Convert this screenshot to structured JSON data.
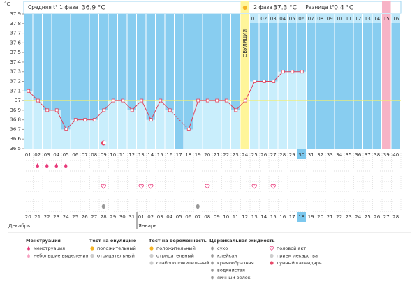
{
  "chart_data": {
    "type": "line",
    "y_unit": "°C",
    "header": {
      "phase1_label": "Средняя t° 1 фаза",
      "phase1_avg": "36.9 °C",
      "phase2_label": "2 фаза",
      "phase2_avg": "37.3 °C",
      "diff_label": "Разница t°",
      "diff": "0.4 °C"
    },
    "ovulation_label": "ОВУЛЯЦИЯ",
    "categories": [
      "01",
      "02",
      "03",
      "04",
      "05",
      "06",
      "07",
      "08",
      "09",
      "10",
      "11",
      "12",
      "13",
      "14",
      "15",
      "16",
      "17",
      "18",
      "19",
      "20",
      "21",
      "22",
      "23",
      "24",
      "25",
      "26",
      "27",
      "28",
      "29",
      "30",
      "31",
      "32",
      "33",
      "34",
      "35",
      "36",
      "37",
      "38",
      "39",
      "40"
    ],
    "values": [
      37.1,
      37.0,
      36.9,
      36.9,
      36.7,
      36.8,
      36.8,
      36.8,
      36.9,
      37.0,
      37.0,
      36.9,
      37.0,
      36.8,
      37.0,
      36.9,
      null,
      36.7,
      37.0,
      37.0,
      37.0,
      37.0,
      36.9,
      37.0,
      37.2,
      37.2,
      37.2,
      37.3,
      37.3,
      37.3,
      null,
      null,
      null,
      null,
      null,
      null,
      null,
      null,
      null,
      null
    ],
    "phase2_days": [
      "01",
      "02",
      "03",
      "04",
      "05",
      "06",
      "07",
      "08",
      "09",
      "10",
      "11",
      "12",
      "13",
      "14",
      "15",
      "16"
    ],
    "ovulation_day": 24,
    "highlight_day": 39,
    "today": 30,
    "reference_line": 37.0,
    "ylim": [
      36.5,
      37.9
    ],
    "yticks": [
      36.5,
      36.6,
      36.7,
      36.8,
      36.9,
      37,
      37.1,
      37.2,
      37.3,
      37.4,
      37.5,
      37.6,
      37.7,
      37.8,
      37.9
    ],
    "line_color": "#e0405a",
    "bar_color": "#c9eefc",
    "background_color": "#88cdf0",
    "ovulation_color": "#fff59a",
    "highlight_color": "#f7b3c6",
    "reference_color": "#f5ef6a",
    "weekend_color": "#e8202a",
    "today_color": "#7cc8ee",
    "dates": [
      {
        "label": "20",
        "weekend": false
      },
      {
        "label": "21",
        "weekend": false
      },
      {
        "label": "22",
        "weekend": true
      },
      {
        "label": "23",
        "weekend": true
      },
      {
        "label": "24",
        "weekend": false
      },
      {
        "label": "25",
        "weekend": false
      },
      {
        "label": "26",
        "weekend": false
      },
      {
        "label": "27",
        "weekend": false
      },
      {
        "label": "28",
        "weekend": false
      },
      {
        "label": "29",
        "weekend": true
      },
      {
        "label": "30",
        "weekend": true
      },
      {
        "label": "31",
        "weekend": false
      },
      {
        "label": "01",
        "weekend": false
      },
      {
        "label": "02",
        "weekend": false
      },
      {
        "label": "03",
        "weekend": false
      },
      {
        "label": "04",
        "weekend": false
      },
      {
        "label": "05",
        "weekend": true
      },
      {
        "label": "06",
        "weekend": true
      },
      {
        "label": "07",
        "weekend": false
      },
      {
        "label": "08",
        "weekend": false
      },
      {
        "label": "09",
        "weekend": false
      },
      {
        "label": "10",
        "weekend": false
      },
      {
        "label": "11",
        "weekend": false
      },
      {
        "label": "12",
        "weekend": true
      },
      {
        "label": "13",
        "weekend": true
      },
      {
        "label": "14",
        "weekend": false
      },
      {
        "label": "15",
        "weekend": false
      },
      {
        "label": "16",
        "weekend": false
      },
      {
        "label": "17",
        "weekend": false
      },
      {
        "label": "18",
        "weekend": false
      },
      {
        "label": "19",
        "weekend": true
      },
      {
        "label": "20",
        "weekend": true
      },
      {
        "label": "21",
        "weekend": false
      },
      {
        "label": "22",
        "weekend": false
      },
      {
        "label": "23",
        "weekend": false
      },
      {
        "label": "24",
        "weekend": false
      },
      {
        "label": "25",
        "weekend": false
      },
      {
        "label": "26",
        "weekend": true
      },
      {
        "label": "27",
        "weekend": true
      },
      {
        "label": "28",
        "weekend": false
      }
    ],
    "months": [
      "Декабрь",
      "Январь"
    ],
    "events": {
      "menstruation": [
        2,
        3,
        4,
        5
      ],
      "intercourse": [
        9,
        13,
        14,
        20,
        25,
        27
      ],
      "cervical": [
        9,
        19
      ],
      "lunar": [
        9
      ]
    },
    "legend": [
      {
        "title": "Менструация",
        "items": [
          "менструация",
          "небольшие выделения"
        ]
      },
      {
        "title": "Тест на овуляцию",
        "items": [
          "положительный",
          "отрицательный"
        ]
      },
      {
        "title": "Тест на беременность",
        "items": [
          "положительный",
          "отрицательный",
          "слабоположительный"
        ]
      },
      {
        "title": "Цервикальная жидкость",
        "items": [
          "сухо",
          "клейкая",
          "кремообразная",
          "водянистая",
          "яичный белок"
        ]
      },
      {
        "title": null,
        "items": [
          "половой акт",
          "прием лекарства",
          "лунный календарь"
        ]
      }
    ]
  }
}
